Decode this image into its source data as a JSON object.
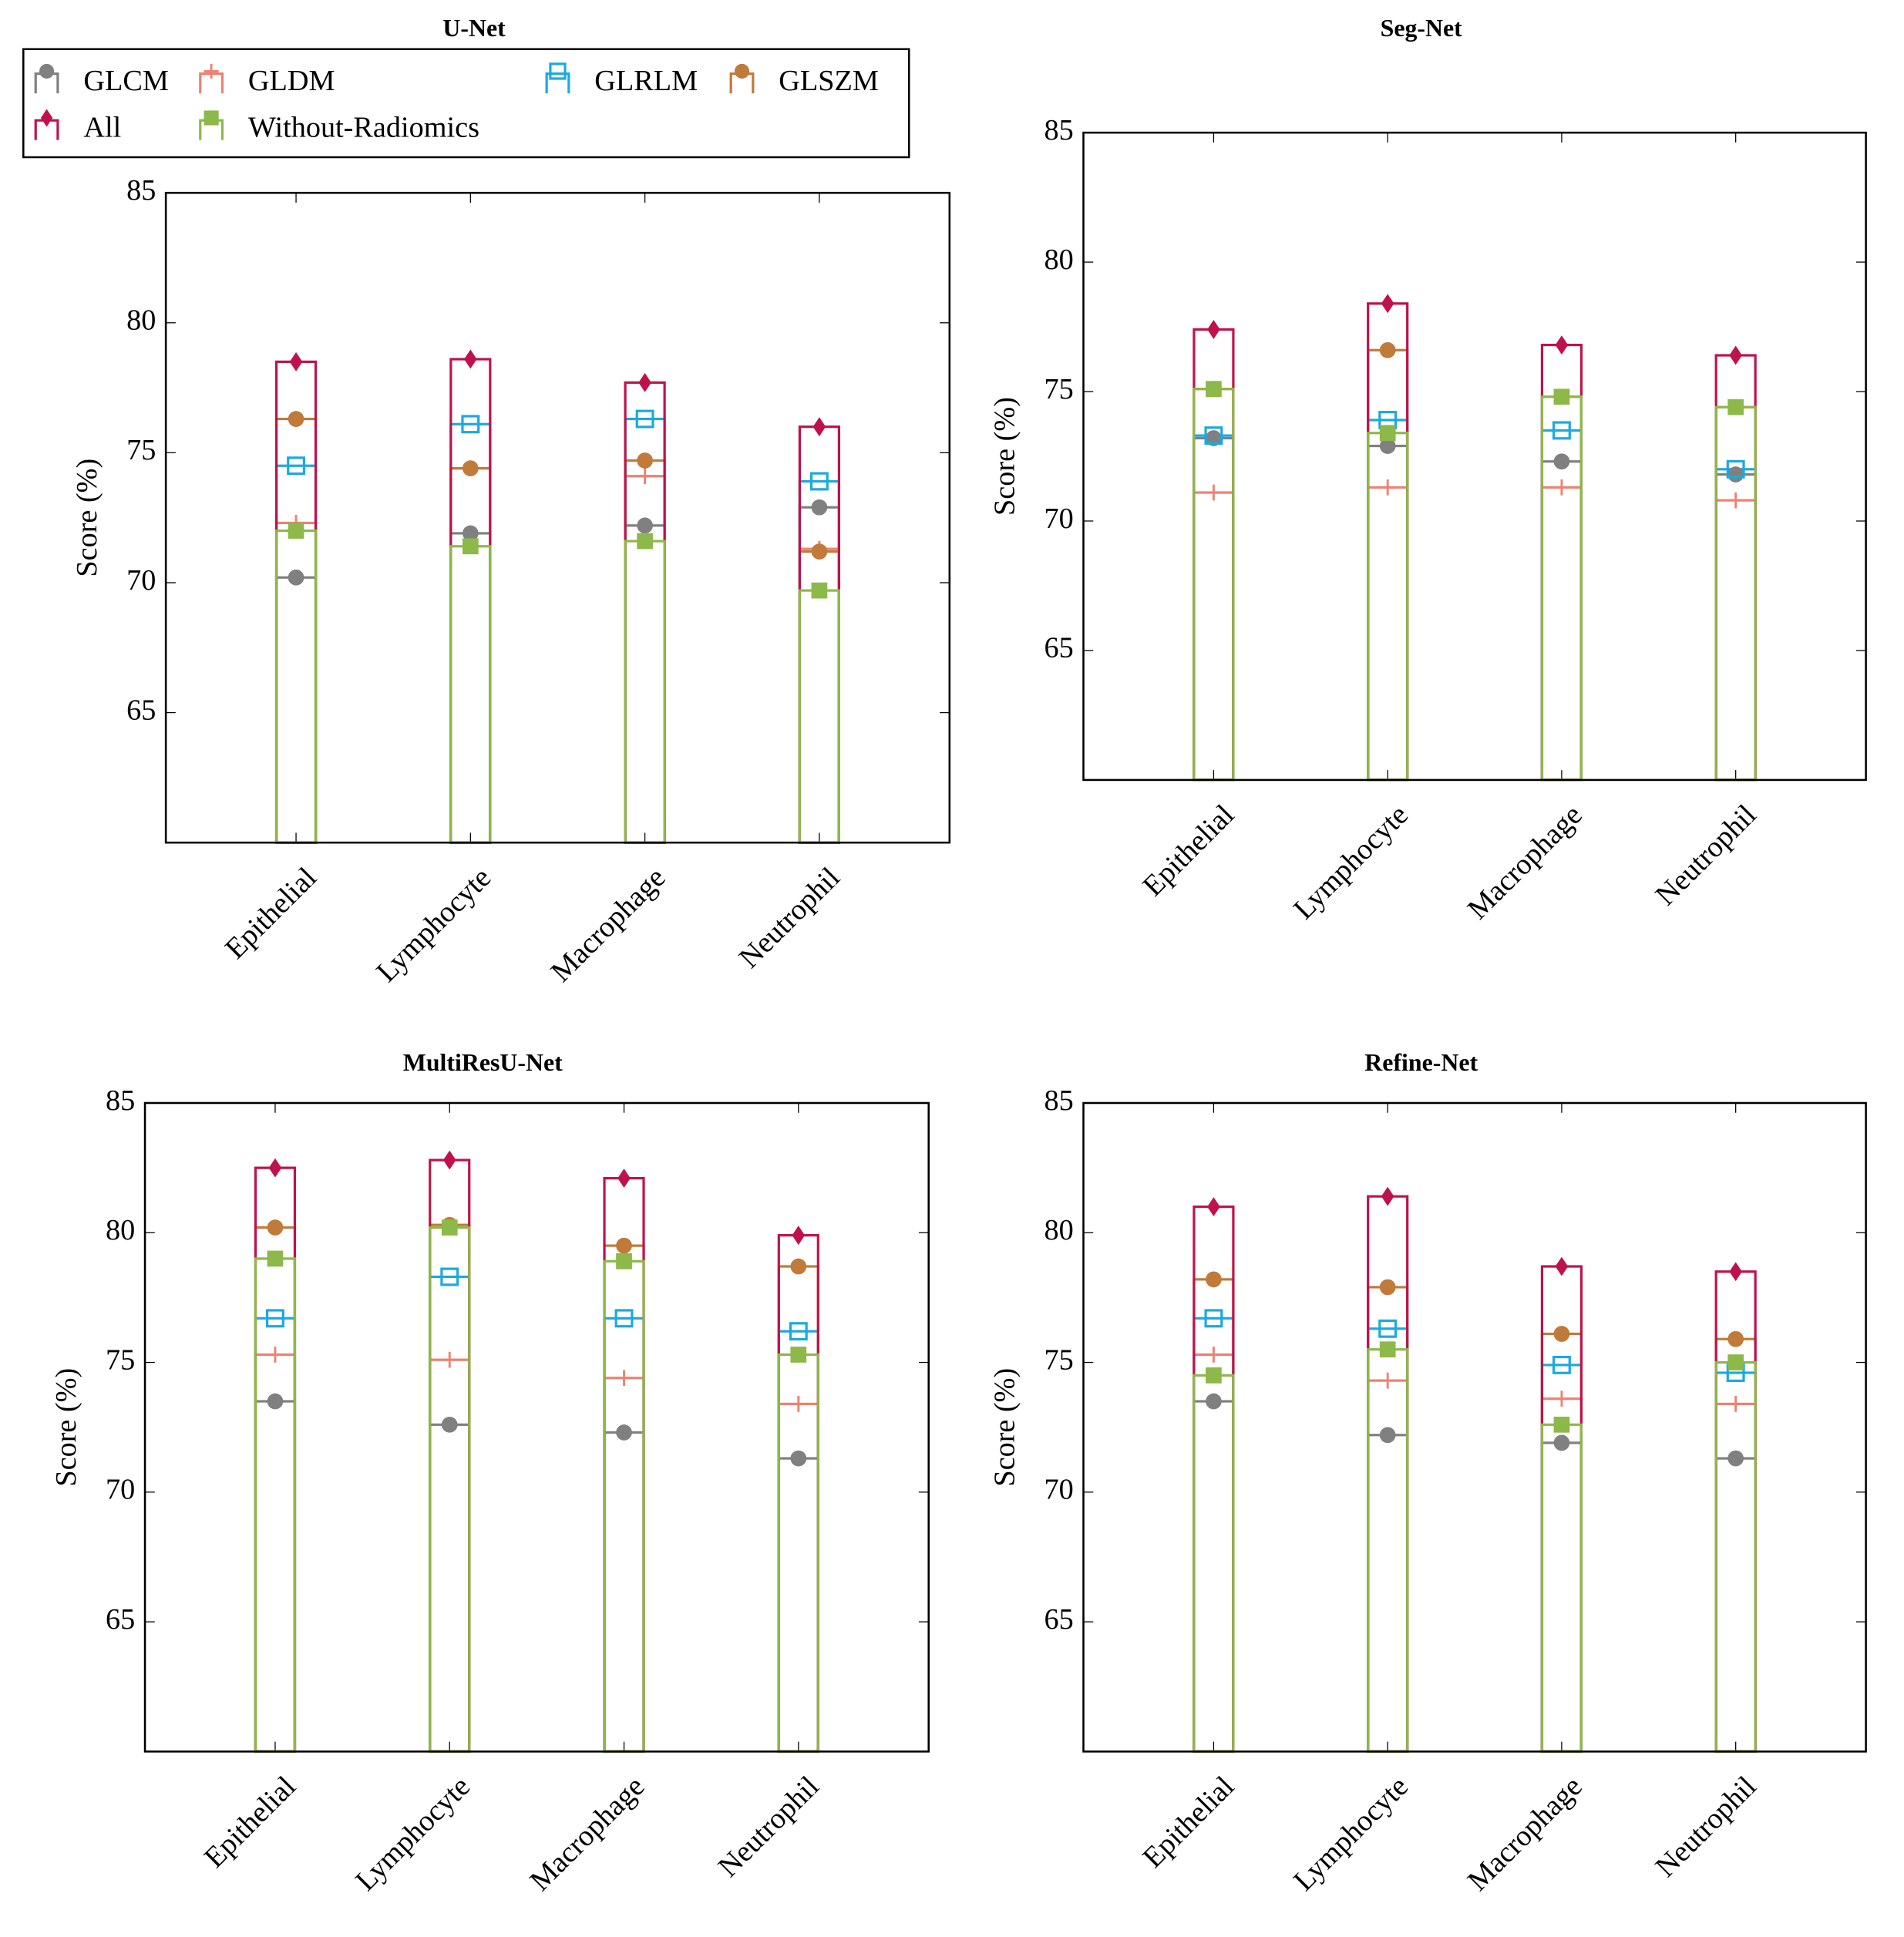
{
  "chart_data": [
    {
      "type": "bar",
      "title": "U-Net",
      "y_label": "Score (%)",
      "legend": "top-left",
      "categories": [
        "Epithelial",
        "Lymphocyte",
        "Macrophage",
        "Neutrophil"
      ],
      "ylim": [
        60,
        85
      ],
      "yticks": [
        65,
        70,
        75,
        80,
        85
      ],
      "series": [
        {
          "name": "GLCM",
          "color": "#808080",
          "marker": "circle",
          "values": [
            70.2,
            71.9,
            72.2,
            72.9
          ]
        },
        {
          "name": "GLDM",
          "color": "#f08070",
          "marker": "plus",
          "values": [
            72.3,
            74.4,
            74.1,
            71.3
          ]
        },
        {
          "name": "GLRLM",
          "color": "#1ba9e0",
          "marker": "open-square",
          "values": [
            74.5,
            76.1,
            76.3,
            73.9
          ]
        },
        {
          "name": "GLSZM",
          "color": "#c07a3a",
          "marker": "circle",
          "values": [
            76.3,
            74.4,
            74.7,
            71.2
          ]
        },
        {
          "name": "All",
          "color": "#c0124a",
          "marker": "diamond",
          "values": [
            78.5,
            78.6,
            77.7,
            76.0
          ]
        },
        {
          "name": "Without-Radiomics",
          "color": "#8db84a",
          "marker": "square",
          "values": [
            72.0,
            71.4,
            71.6,
            69.7
          ]
        }
      ]
    },
    {
      "type": "bar",
      "title": "Seg-Net",
      "y_label": "Score (%)",
      "categories": [
        "Epithelial",
        "Lymphocyte",
        "Macrophage",
        "Neutrophil"
      ],
      "ylim": [
        60,
        85
      ],
      "yticks": [
        65,
        70,
        75,
        80,
        85
      ],
      "series": [
        {
          "name": "GLCM",
          "color": "#808080",
          "marker": "circle",
          "values": [
            73.2,
            72.9,
            72.3,
            71.8
          ]
        },
        {
          "name": "GLDM",
          "color": "#f08070",
          "marker": "plus",
          "values": [
            71.1,
            71.3,
            71.3,
            70.8
          ]
        },
        {
          "name": "GLRLM",
          "color": "#1ba9e0",
          "marker": "open-square",
          "values": [
            73.3,
            73.9,
            73.5,
            72.0
          ]
        },
        {
          "name": "GLSZM",
          "color": "#c07a3a",
          "marker": "circle",
          "values": [
            75.1,
            76.6,
            74.8,
            74.4
          ]
        },
        {
          "name": "All",
          "color": "#c0124a",
          "marker": "diamond",
          "values": [
            77.4,
            78.4,
            76.8,
            76.4
          ]
        },
        {
          "name": "Without-Radiomics",
          "color": "#8db84a",
          "marker": "square",
          "values": [
            75.1,
            73.4,
            74.8,
            74.4
          ]
        }
      ]
    },
    {
      "type": "bar",
      "title": "MultiResU-Net",
      "y_label": "Score (%)",
      "categories": [
        "Epithelial",
        "Lymphocyte",
        "Macrophage",
        "Neutrophil"
      ],
      "ylim": [
        60,
        85
      ],
      "yticks": [
        65,
        70,
        75,
        80,
        85
      ],
      "series": [
        {
          "name": "GLCM",
          "color": "#808080",
          "marker": "circle",
          "values": [
            73.5,
            72.6,
            72.3,
            71.3
          ]
        },
        {
          "name": "GLDM",
          "color": "#f08070",
          "marker": "plus",
          "values": [
            75.3,
            75.1,
            74.4,
            73.4
          ]
        },
        {
          "name": "GLRLM",
          "color": "#1ba9e0",
          "marker": "open-square",
          "values": [
            76.7,
            78.3,
            76.7,
            76.2
          ]
        },
        {
          "name": "GLSZM",
          "color": "#c07a3a",
          "marker": "circle",
          "values": [
            80.2,
            80.3,
            79.5,
            78.7
          ]
        },
        {
          "name": "All",
          "color": "#c0124a",
          "marker": "diamond",
          "values": [
            82.5,
            82.8,
            82.1,
            79.9
          ]
        },
        {
          "name": "Without-Radiomics",
          "color": "#8db84a",
          "marker": "square",
          "values": [
            79.0,
            80.2,
            78.9,
            75.3
          ]
        }
      ]
    },
    {
      "type": "bar",
      "title": "Refine-Net",
      "y_label": "Score (%)",
      "categories": [
        "Epithelial",
        "Lymphocyte",
        "Macrophage",
        "Neutrophil"
      ],
      "ylim": [
        60,
        85
      ],
      "yticks": [
        65,
        70,
        75,
        80,
        85
      ],
      "series": [
        {
          "name": "GLCM",
          "color": "#808080",
          "marker": "circle",
          "values": [
            73.5,
            72.2,
            71.9,
            71.3
          ]
        },
        {
          "name": "GLDM",
          "color": "#f08070",
          "marker": "plus",
          "values": [
            75.3,
            74.3,
            73.6,
            73.4
          ]
        },
        {
          "name": "GLRLM",
          "color": "#1ba9e0",
          "marker": "open-square",
          "values": [
            76.7,
            76.3,
            74.9,
            74.6
          ]
        },
        {
          "name": "GLSZM",
          "color": "#c07a3a",
          "marker": "circle",
          "values": [
            78.2,
            77.9,
            76.1,
            75.9
          ]
        },
        {
          "name": "All",
          "color": "#c0124a",
          "marker": "diamond",
          "values": [
            81.0,
            81.4,
            78.7,
            78.5
          ]
        },
        {
          "name": "Without-Radiomics",
          "color": "#8db84a",
          "marker": "square",
          "values": [
            74.5,
            75.5,
            72.6,
            75.0
          ]
        }
      ]
    }
  ]
}
